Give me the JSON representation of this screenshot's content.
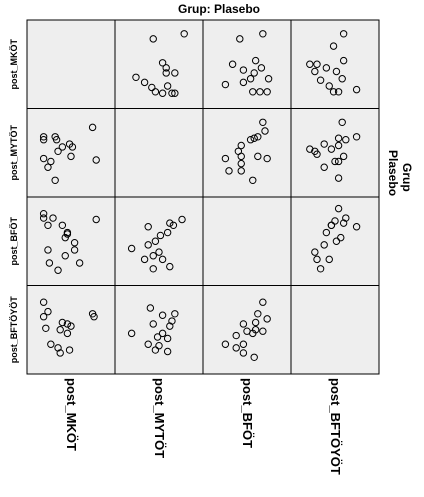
{
  "title": "Grup: Plasebo",
  "side_title": "Grup",
  "side_value": "Plasebo",
  "chart_data": {
    "type": "scatter",
    "matrix": true,
    "grid": false,
    "variables": [
      "post_MKÖT",
      "post_MYTÖT",
      "post_BFÖT",
      "post_BFTÖYÖT"
    ],
    "panel_background": "#eeeeee",
    "marker": "open-circle",
    "panels": [
      {
        "row": "post_MKÖT",
        "col": "post_MYTÖT",
        "points": [
          [
            0.42,
            0.85
          ],
          [
            0.85,
            0.92
          ],
          [
            0.55,
            0.52
          ],
          [
            0.6,
            0.38
          ],
          [
            0.72,
            0.38
          ],
          [
            0.62,
            0.2
          ],
          [
            0.3,
            0.25
          ],
          [
            0.45,
            0.12
          ],
          [
            0.4,
            0.18
          ],
          [
            0.55,
            0.1
          ],
          [
            0.72,
            0.1
          ],
          [
            0.68,
            0.1
          ],
          [
            0.18,
            0.32
          ],
          [
            0.6,
            0.45
          ]
        ]
      },
      {
        "row": "post_MKÖT",
        "col": "post_BFÖT",
        "points": [
          [
            0.4,
            0.85
          ],
          [
            0.72,
            0.92
          ],
          [
            0.3,
            0.5
          ],
          [
            0.45,
            0.42
          ],
          [
            0.6,
            0.38
          ],
          [
            0.62,
            0.55
          ],
          [
            0.45,
            0.25
          ],
          [
            0.68,
            0.12
          ],
          [
            0.78,
            0.12
          ],
          [
            0.58,
            0.12
          ],
          [
            0.2,
            0.22
          ],
          [
            0.55,
            0.3
          ],
          [
            0.7,
            0.45
          ],
          [
            0.8,
            0.3
          ]
        ]
      },
      {
        "row": "post_MKÖT",
        "col": "post_BFTÖYÖT",
        "points": [
          [
            0.15,
            0.5
          ],
          [
            0.22,
            0.4
          ],
          [
            0.3,
            0.28
          ],
          [
            0.25,
            0.5
          ],
          [
            0.38,
            0.45
          ],
          [
            0.42,
            0.2
          ],
          [
            0.48,
            0.12
          ],
          [
            0.55,
            0.12
          ],
          [
            0.6,
            0.3
          ],
          [
            0.52,
            0.4
          ],
          [
            0.62,
            0.55
          ],
          [
            0.48,
            0.75
          ],
          [
            0.62,
            0.92
          ],
          [
            0.8,
            0.15
          ]
        ]
      },
      {
        "row": "post_MYTÖT",
        "col": "post_MKÖT",
        "points": [
          [
            0.12,
            0.72
          ],
          [
            0.12,
            0.68
          ],
          [
            0.28,
            0.72
          ],
          [
            0.3,
            0.68
          ],
          [
            0.48,
            0.62
          ],
          [
            0.52,
            0.58
          ],
          [
            0.38,
            0.58
          ],
          [
            0.32,
            0.52
          ],
          [
            0.12,
            0.42
          ],
          [
            0.18,
            0.3
          ],
          [
            0.22,
            0.38
          ],
          [
            0.5,
            0.45
          ],
          [
            0.85,
            0.4
          ],
          [
            0.8,
            0.85
          ],
          [
            0.28,
            0.12
          ]
        ]
      },
      {
        "row": "post_MYTÖT",
        "col": "post_BFÖT",
        "points": [
          [
            0.72,
            0.92
          ],
          [
            0.75,
            0.8
          ],
          [
            0.6,
            0.7
          ],
          [
            0.65,
            0.72
          ],
          [
            0.55,
            0.68
          ],
          [
            0.42,
            0.6
          ],
          [
            0.42,
            0.45
          ],
          [
            0.42,
            0.35
          ],
          [
            0.38,
            0.52
          ],
          [
            0.2,
            0.42
          ],
          [
            0.65,
            0.45
          ],
          [
            0.78,
            0.42
          ],
          [
            0.42,
            0.25
          ],
          [
            0.58,
            0.12
          ],
          [
            0.25,
            0.25
          ]
        ]
      },
      {
        "row": "post_MYTÖT",
        "col": "post_BFTÖYÖT",
        "points": [
          [
            0.6,
            0.92
          ],
          [
            0.55,
            0.7
          ],
          [
            0.55,
            0.6
          ],
          [
            0.65,
            0.68
          ],
          [
            0.35,
            0.62
          ],
          [
            0.45,
            0.55
          ],
          [
            0.15,
            0.55
          ],
          [
            0.25,
            0.48
          ],
          [
            0.22,
            0.52
          ],
          [
            0.35,
            0.3
          ],
          [
            0.55,
            0.38
          ],
          [
            0.62,
            0.45
          ],
          [
            0.5,
            0.38
          ],
          [
            0.8,
            0.72
          ],
          [
            0.55,
            0.15
          ]
        ]
      },
      {
        "row": "post_BFÖT",
        "col": "post_MKÖT",
        "points": [
          [
            0.12,
            0.88
          ],
          [
            0.12,
            0.82
          ],
          [
            0.25,
            0.82
          ],
          [
            0.18,
            0.72
          ],
          [
            0.38,
            0.72
          ],
          [
            0.85,
            0.8
          ],
          [
            0.45,
            0.6
          ],
          [
            0.42,
            0.55
          ],
          [
            0.55,
            0.48
          ],
          [
            0.55,
            0.38
          ],
          [
            0.42,
            0.3
          ],
          [
            0.18,
            0.38
          ],
          [
            0.2,
            0.2
          ],
          [
            0.32,
            0.1
          ],
          [
            0.62,
            0.2
          ],
          [
            0.45,
            0.62
          ]
        ]
      },
      {
        "row": "post_BFÖT",
        "col": "post_MYTÖT",
        "points": [
          [
            0.82,
            0.8
          ],
          [
            0.65,
            0.75
          ],
          [
            0.7,
            0.72
          ],
          [
            0.62,
            0.62
          ],
          [
            0.52,
            0.58
          ],
          [
            0.45,
            0.5
          ],
          [
            0.35,
            0.45
          ],
          [
            0.5,
            0.35
          ],
          [
            0.42,
            0.3
          ],
          [
            0.55,
            0.25
          ],
          [
            0.3,
            0.25
          ],
          [
            0.65,
            0.15
          ],
          [
            0.42,
            0.12
          ],
          [
            0.35,
            0.7
          ],
          [
            0.12,
            0.4
          ]
        ]
      },
      {
        "row": "post_BFÖT",
        "col": "post_BFTÖYÖT",
        "points": [
          [
            0.55,
            0.95
          ],
          [
            0.5,
            0.78
          ],
          [
            0.62,
            0.75
          ],
          [
            0.65,
            0.82
          ],
          [
            0.45,
            0.72
          ],
          [
            0.8,
            0.7
          ],
          [
            0.38,
            0.62
          ],
          [
            0.58,
            0.55
          ],
          [
            0.52,
            0.5
          ],
          [
            0.35,
            0.45
          ],
          [
            0.22,
            0.35
          ],
          [
            0.25,
            0.25
          ],
          [
            0.42,
            0.25
          ],
          [
            0.3,
            0.12
          ],
          [
            0.45,
            0.72
          ]
        ]
      },
      {
        "row": "post_BFTÖYÖT",
        "col": "post_MKÖT",
        "points": [
          [
            0.12,
            0.88
          ],
          [
            0.12,
            0.68
          ],
          [
            0.15,
            0.52
          ],
          [
            0.18,
            0.75
          ],
          [
            0.38,
            0.6
          ],
          [
            0.45,
            0.58
          ],
          [
            0.5,
            0.55
          ],
          [
            0.35,
            0.5
          ],
          [
            0.45,
            0.45
          ],
          [
            0.8,
            0.72
          ],
          [
            0.82,
            0.68
          ],
          [
            0.22,
            0.3
          ],
          [
            0.32,
            0.25
          ],
          [
            0.48,
            0.22
          ],
          [
            0.35,
            0.18
          ]
        ]
      },
      {
        "row": "post_BFTÖYÖT",
        "col": "post_MYTÖT",
        "points": [
          [
            0.72,
            0.72
          ],
          [
            0.68,
            0.62
          ],
          [
            0.55,
            0.7
          ],
          [
            0.42,
            0.58
          ],
          [
            0.65,
            0.55
          ],
          [
            0.55,
            0.45
          ],
          [
            0.48,
            0.4
          ],
          [
            0.62,
            0.38
          ],
          [
            0.12,
            0.45
          ],
          [
            0.35,
            0.3
          ],
          [
            0.5,
            0.28
          ],
          [
            0.45,
            0.22
          ],
          [
            0.62,
            0.2
          ],
          [
            0.38,
            0.8
          ]
        ]
      },
      {
        "row": "post_BFTÖYÖT",
        "col": "post_BFÖT",
        "points": [
          [
            0.72,
            0.88
          ],
          [
            0.65,
            0.72
          ],
          [
            0.62,
            0.6
          ],
          [
            0.78,
            0.65
          ],
          [
            0.45,
            0.58
          ],
          [
            0.5,
            0.48
          ],
          [
            0.62,
            0.5
          ],
          [
            0.72,
            0.48
          ],
          [
            0.58,
            0.45
          ],
          [
            0.35,
            0.42
          ],
          [
            0.2,
            0.3
          ],
          [
            0.35,
            0.25
          ],
          [
            0.45,
            0.18
          ],
          [
            0.6,
            0.12
          ],
          [
            0.45,
            0.3
          ]
        ]
      }
    ]
  }
}
